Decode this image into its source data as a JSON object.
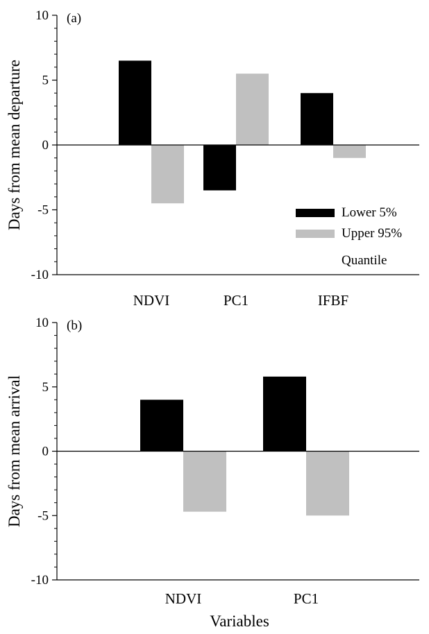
{
  "colors": {
    "lower": "#000000",
    "upper": "#c0c0c0",
    "axis": "#000000"
  },
  "chart_data": [
    {
      "type": "bar",
      "panel_label": "(a)",
      "categories": [
        "NDVI",
        "PC1",
        "IFBF"
      ],
      "series": [
        {
          "name": "Lower 5%",
          "values": [
            6.5,
            -3.5,
            4.0
          ]
        },
        {
          "name": "Upper 95%",
          "values": [
            -4.5,
            5.5,
            -1.0
          ]
        }
      ],
      "ylabel": "Days from mean departure",
      "xlabel": "",
      "ylim": [
        -10,
        10
      ],
      "yticks": [
        -10,
        -5,
        0,
        5,
        10
      ],
      "legend": {
        "placement": "bottom-right",
        "title": "Quantile"
      }
    },
    {
      "type": "bar",
      "panel_label": "(b)",
      "categories": [
        "NDVI",
        "PC1"
      ],
      "series": [
        {
          "name": "Lower 5%",
          "values": [
            4.0,
            5.8
          ]
        },
        {
          "name": "Upper 95%",
          "values": [
            -4.7,
            -5.0
          ]
        }
      ],
      "ylabel": "Days from mean arrival",
      "xlabel": "Variables",
      "ylim": [
        -10,
        10
      ],
      "yticks": [
        -10,
        -5,
        0,
        5,
        10
      ]
    }
  ]
}
